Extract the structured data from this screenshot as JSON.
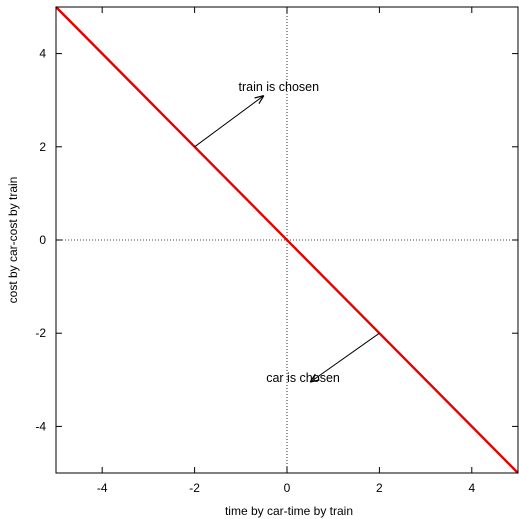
{
  "chart_data": {
    "type": "line",
    "title": "",
    "xlabel": "time by car-time by train",
    "ylabel": "cost by car-cost by train",
    "xlim": [
      -5,
      5
    ],
    "ylim": [
      -5,
      5
    ],
    "xticks": [
      -4,
      -2,
      0,
      2,
      4
    ],
    "yticks": [
      -4,
      -2,
      0,
      2,
      4
    ],
    "xtick_labels": [
      "-4",
      "-2",
      "0",
      "2",
      "4"
    ],
    "ytick_labels": [
      "-4",
      "-2",
      "0",
      "2",
      "4"
    ],
    "grid": false,
    "zero_axes": {
      "x": 0,
      "y": 0,
      "style": "dotted"
    },
    "series": [
      {
        "x": [
          -5,
          5
        ],
        "y": [
          5,
          -5
        ],
        "color": "#e60000"
      }
    ],
    "annotations": [
      {
        "text": "train is chosen",
        "text_at": [
          -1.05,
          3.2
        ],
        "arrow_from": [
          -2,
          2
        ],
        "arrow_to": [
          -0.5,
          3.1
        ]
      },
      {
        "text": "car is chosen",
        "text_at": [
          -0.45,
          -3.05
        ],
        "arrow_from": [
          2,
          -2
        ],
        "arrow_to": [
          0.5,
          -3.05
        ]
      }
    ]
  }
}
